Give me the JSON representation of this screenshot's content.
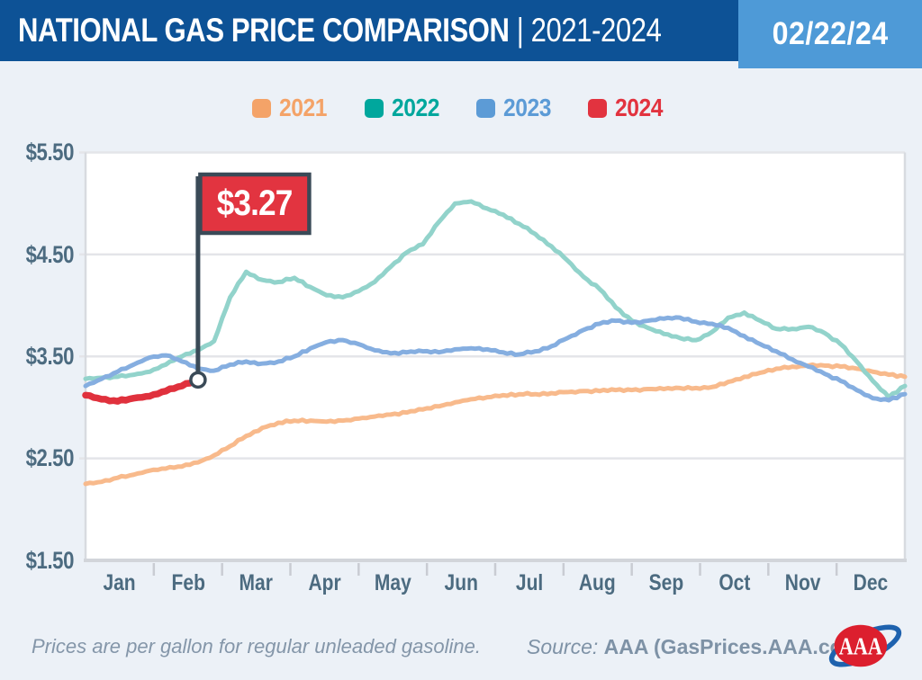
{
  "header": {
    "title_main": "NATIONAL GAS PRICE COMPARISON",
    "title_rest": "| 2021-2024",
    "date": "02/22/24"
  },
  "chart_data": {
    "type": "line",
    "title": "National Gas Price Comparison 2021-2024",
    "unit": "USD per gallon",
    "x_axis": {
      "months": [
        "Jan",
        "Feb",
        "Mar",
        "Apr",
        "May",
        "Jun",
        "Jul",
        "Aug",
        "Sep",
        "Oct",
        "Nov",
        "Dec"
      ]
    },
    "y_axis": {
      "tick_labels": [
        "$5.50",
        "$4.50",
        "$3.50",
        "$2.50",
        "$1.50"
      ],
      "min": 1.5,
      "max": 5.5,
      "tick_step": 1.0
    },
    "grid": "horizontal",
    "legend_position": "top-center",
    "series": [
      {
        "name": "2021",
        "legend_color": "#F4A368",
        "line_color": "#F8BA8C",
        "points_per_year": 52,
        "values": [
          2.25,
          2.27,
          2.31,
          2.34,
          2.38,
          2.4,
          2.42,
          2.46,
          2.53,
          2.62,
          2.72,
          2.8,
          2.85,
          2.87,
          2.87,
          2.86,
          2.87,
          2.89,
          2.91,
          2.93,
          2.95,
          2.98,
          3.01,
          3.05,
          3.08,
          3.1,
          3.12,
          3.13,
          3.13,
          3.14,
          3.15,
          3.16,
          3.16,
          3.17,
          3.17,
          3.18,
          3.18,
          3.19,
          3.19,
          3.2,
          3.25,
          3.3,
          3.34,
          3.38,
          3.4,
          3.41,
          3.41,
          3.4,
          3.38,
          3.35,
          3.32,
          3.3
        ]
      },
      {
        "name": "2022",
        "legend_color": "#00A79D",
        "line_color": "#92D3CB",
        "points_per_year": 52,
        "values": [
          3.28,
          3.29,
          3.3,
          3.32,
          3.35,
          3.42,
          3.5,
          3.56,
          3.65,
          4.08,
          4.33,
          4.25,
          4.23,
          4.27,
          4.18,
          4.1,
          4.08,
          4.14,
          4.23,
          4.38,
          4.52,
          4.6,
          4.82,
          5.0,
          5.02,
          4.95,
          4.89,
          4.8,
          4.7,
          4.58,
          4.44,
          4.28,
          4.16,
          3.98,
          3.85,
          3.78,
          3.72,
          3.68,
          3.66,
          3.74,
          3.88,
          3.93,
          3.85,
          3.77,
          3.77,
          3.79,
          3.73,
          3.62,
          3.45,
          3.26,
          3.1,
          3.21
        ]
      },
      {
        "name": "2023",
        "legend_color": "#5C9BD6",
        "line_color": "#85AEE0",
        "points_per_year": 52,
        "values": [
          3.21,
          3.28,
          3.35,
          3.42,
          3.49,
          3.51,
          3.45,
          3.38,
          3.36,
          3.42,
          3.45,
          3.43,
          3.45,
          3.5,
          3.58,
          3.64,
          3.66,
          3.62,
          3.56,
          3.53,
          3.54,
          3.55,
          3.54,
          3.57,
          3.58,
          3.57,
          3.54,
          3.52,
          3.55,
          3.6,
          3.68,
          3.76,
          3.82,
          3.85,
          3.83,
          3.85,
          3.87,
          3.88,
          3.84,
          3.82,
          3.78,
          3.7,
          3.62,
          3.55,
          3.47,
          3.4,
          3.33,
          3.26,
          3.17,
          3.09,
          3.07,
          3.13
        ]
      },
      {
        "name": "2024",
        "legend_color": "#E2333F",
        "line_color": "#E0313D",
        "points_per_year": 52,
        "values": [
          3.12,
          3.08,
          3.06,
          3.09,
          3.11,
          3.16,
          3.21,
          3.27
        ]
      }
    ],
    "annotation": {
      "label": "$3.27",
      "value": 3.27,
      "series": "2024",
      "flag_fill": "#E23440",
      "flag_border": "#3A4A57"
    }
  },
  "footer": {
    "note": "Prices are per gallon for regular unleaded gasoline.",
    "source_prefix": "Source:",
    "source": "AAA (GasPrices.AAA.com)",
    "logo_text": "AAA"
  }
}
